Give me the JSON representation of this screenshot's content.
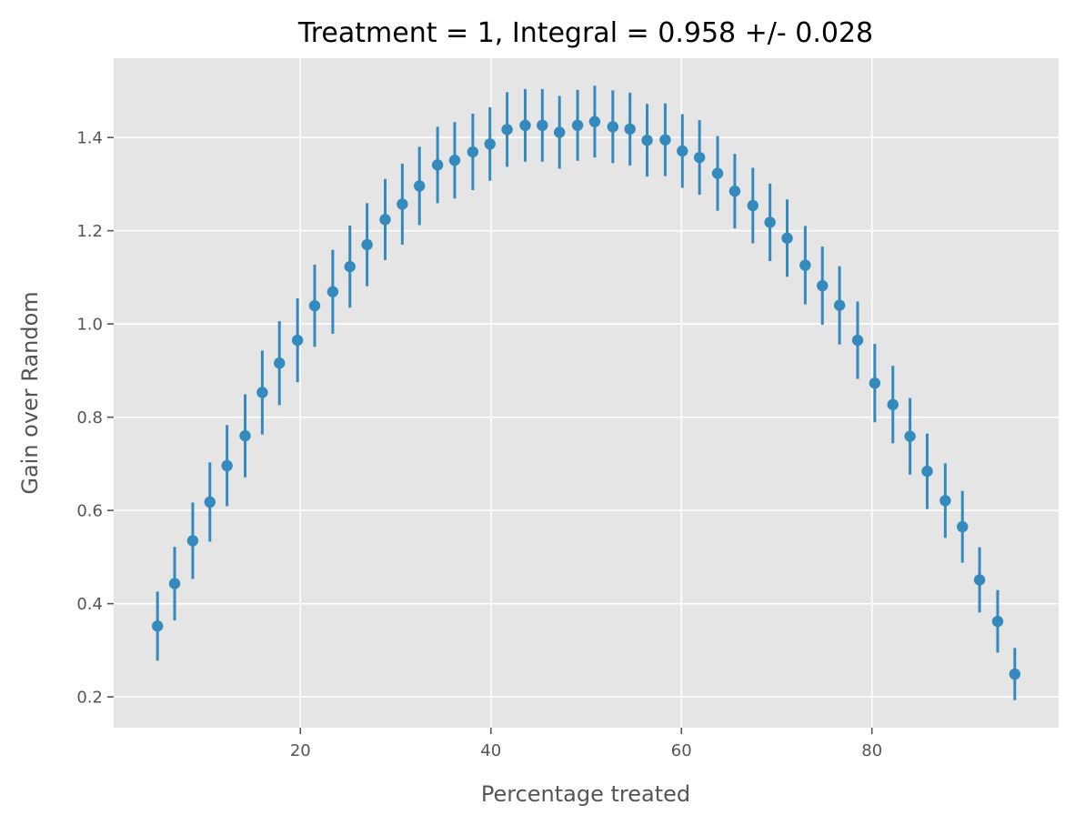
{
  "chart_data": {
    "type": "scatter",
    "title": "Treatment = 1, Integral = 0.958 +/- 0.028",
    "xlabel": "Percentage treated",
    "ylabel": "Gain over Random",
    "xlim": [
      0.4,
      99.6
    ],
    "ylim": [
      0.134,
      1.57
    ],
    "x_ticks": [
      20,
      40,
      60,
      80
    ],
    "y_ticks": [
      0.2,
      0.4,
      0.6,
      0.8,
      1.0,
      1.2,
      1.4
    ],
    "x_tick_labels": [
      "20",
      "40",
      "60",
      "80"
    ],
    "y_tick_labels": [
      "0.2",
      "0.4",
      "0.6",
      "0.8",
      "1.0",
      "1.2",
      "1.4"
    ],
    "grid": true,
    "background": "#e5e5e5",
    "grid_color": "#ffffff",
    "series": [
      {
        "color": "#348abd",
        "x": [
          5.0,
          6.8,
          8.7,
          10.5,
          12.3,
          14.2,
          16.0,
          17.8,
          19.7,
          21.5,
          23.4,
          25.2,
          27.0,
          28.9,
          30.7,
          32.5,
          34.4,
          36.2,
          38.1,
          39.9,
          41.7,
          43.6,
          45.4,
          47.2,
          49.1,
          50.9,
          52.8,
          54.6,
          56.4,
          58.3,
          60.1,
          61.9,
          63.8,
          65.6,
          67.5,
          69.3,
          71.1,
          73.0,
          74.8,
          76.6,
          78.5,
          80.3,
          82.2,
          84.0,
          85.8,
          87.7,
          89.5,
          91.3,
          93.2,
          95.0
        ],
        "y": [
          0.352,
          0.443,
          0.535,
          0.618,
          0.696,
          0.76,
          0.853,
          0.916,
          0.965,
          1.039,
          1.069,
          1.123,
          1.17,
          1.224,
          1.257,
          1.296,
          1.341,
          1.351,
          1.369,
          1.386,
          1.417,
          1.426,
          1.426,
          1.411,
          1.426,
          1.434,
          1.423,
          1.418,
          1.394,
          1.395,
          1.371,
          1.357,
          1.323,
          1.285,
          1.254,
          1.218,
          1.184,
          1.126,
          1.082,
          1.04,
          0.965,
          0.873,
          0.827,
          0.759,
          0.684,
          0.621,
          0.565,
          0.451,
          0.362,
          0.249
        ],
        "err": [
          0.074,
          0.079,
          0.082,
          0.085,
          0.087,
          0.089,
          0.09,
          0.09,
          0.09,
          0.088,
          0.09,
          0.088,
          0.089,
          0.087,
          0.087,
          0.084,
          0.082,
          0.082,
          0.082,
          0.079,
          0.08,
          0.078,
          0.078,
          0.078,
          0.076,
          0.077,
          0.078,
          0.078,
          0.078,
          0.078,
          0.079,
          0.08,
          0.08,
          0.08,
          0.081,
          0.083,
          0.083,
          0.084,
          0.084,
          0.084,
          0.083,
          0.084,
          0.083,
          0.082,
          0.081,
          0.08,
          0.077,
          0.07,
          0.067,
          0.056
        ]
      }
    ]
  }
}
